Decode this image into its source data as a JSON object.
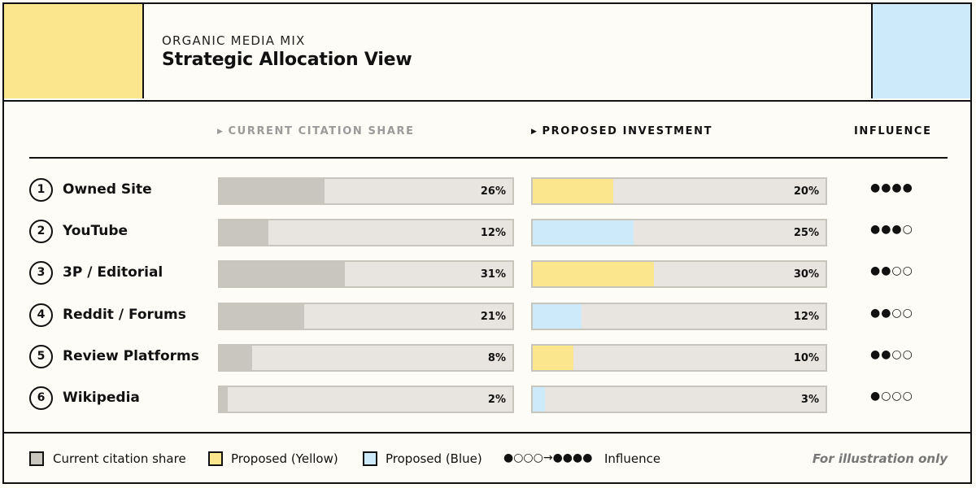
{
  "colors": {
    "grey": "#c9c6bf",
    "yellow": "#fbe68d",
    "blue": "#cdeafb",
    "track": "#e8e5e0"
  },
  "header": {
    "eyebrow": "ORGANIC MEDIA MIX",
    "title": "Strategic Allocation View"
  },
  "columns": {
    "current": "CURRENT CITATION SHARE",
    "proposed": "PROPOSED INVESTMENT",
    "influence": "INFLUENCE"
  },
  "chart_data": {
    "type": "bar",
    "categories": [
      "Owned Site",
      "YouTube",
      "3P / Editorial",
      "Reddit / Forums",
      "Review Platforms",
      "Wikipedia"
    ],
    "series": [
      {
        "name": "Current citation share",
        "values": [
          26,
          12,
          31,
          21,
          8,
          2
        ]
      },
      {
        "name": "Proposed",
        "values": [
          20,
          25,
          30,
          12,
          10,
          3
        ]
      }
    ],
    "proposed_colors": [
      "yellow",
      "blue",
      "yellow",
      "blue",
      "yellow",
      "blue"
    ],
    "influence": [
      4,
      3,
      2,
      2,
      2,
      1
    ],
    "influence_max": 4,
    "xlim": [
      0,
      100
    ]
  },
  "rows": [
    {
      "num": "1",
      "label": "Owned Site",
      "current": "26%",
      "proposed": "20%",
      "influence": "●●●●"
    },
    {
      "num": "2",
      "label": "YouTube",
      "current": "12%",
      "proposed": "25%",
      "influence": "●●●○"
    },
    {
      "num": "3",
      "label": "3P / Editorial",
      "current": "31%",
      "proposed": "30%",
      "influence": "●●○○"
    },
    {
      "num": "4",
      "label": "Reddit / Forums",
      "current": "21%",
      "proposed": "12%",
      "influence": "●●○○"
    },
    {
      "num": "5",
      "label": "Review Platforms",
      "current": "8%",
      "proposed": "10%",
      "influence": "●●○○"
    },
    {
      "num": "6",
      "label": "Wikipedia",
      "current": "2%",
      "proposed": "3%",
      "influence": "●○○○"
    }
  ],
  "legend": {
    "current": "Current citation share",
    "yellow": "Proposed (Yellow)",
    "blue": "Proposed (Blue)",
    "influence_scale": "●○○○→●●●●",
    "influence": "Influence",
    "note": "For illustration only"
  }
}
